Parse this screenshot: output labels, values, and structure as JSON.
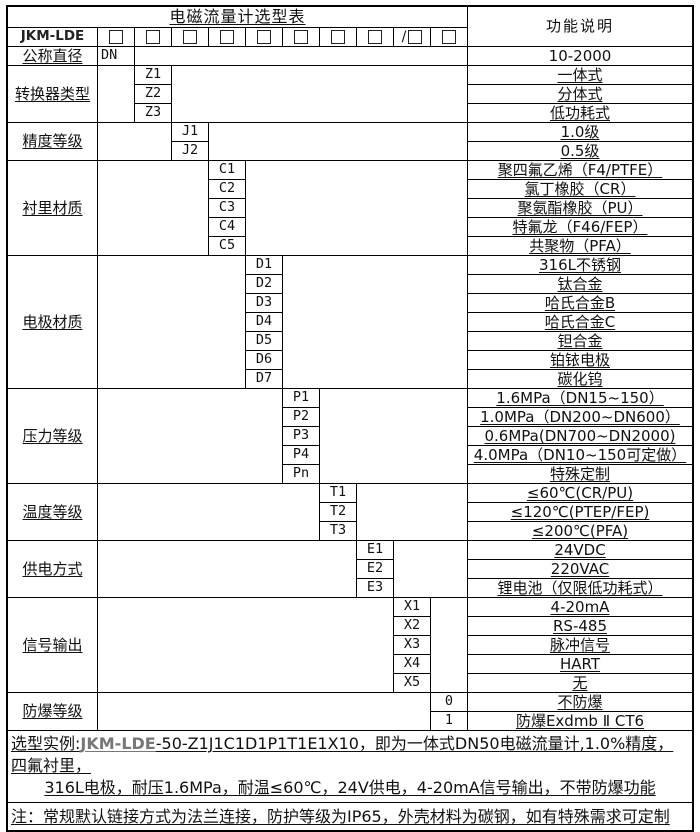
{
  "title": "电磁流量计选型表",
  "function_header": "功能说明",
  "model": {
    "prefix": "JKM-LDE",
    "slash": "/"
  },
  "dn_row": {
    "label": "公称直径",
    "code": "DN",
    "desc": "10-2000"
  },
  "categories": [
    {
      "label": "转换器类型",
      "codes": [
        "Z1",
        "Z2",
        "Z3"
      ],
      "descs": [
        "一体式",
        "分体式",
        "低功耗式"
      ]
    },
    {
      "label": "精度等级",
      "codes": [
        "J1",
        "J2"
      ],
      "descs": [
        "1.0级",
        "0.5级"
      ]
    },
    {
      "label": "衬里材质",
      "codes": [
        "C1",
        "C2",
        "C3",
        "C4",
        "C5"
      ],
      "descs": [
        "聚四氟乙烯（F4/PTFE）",
        "氯丁橡胶（CR）",
        "聚氨酯橡胶（PU）",
        "特氟龙（F46/FEP）",
        "共聚物（PFA）"
      ]
    },
    {
      "label": "电极材质",
      "codes": [
        "D1",
        "D2",
        "D3",
        "D4",
        "D5",
        "D6",
        "D7"
      ],
      "descs": [
        "316L不锈钢",
        "钛合金",
        "哈氏合金B",
        "哈氏合金C",
        "钽合金",
        "铂铱电极",
        "碳化钨"
      ]
    },
    {
      "label": "压力等级",
      "codes": [
        "P1",
        "P2",
        "P3",
        "P4",
        "Pn"
      ],
      "descs": [
        "1.6MPa（DN15~150）",
        "1.0MPa（DN200~DN600）",
        "0.6MPa(DN700~DN2000)",
        "4.0MPa（DN10~150可定做）",
        "特殊定制"
      ]
    },
    {
      "label": "温度等级",
      "codes": [
        "T1",
        "T2",
        "T3"
      ],
      "descs": [
        "≤60℃(CR/PU)",
        "≤120℃(PTEP/FEP)",
        "≤200℃(PFA)"
      ]
    },
    {
      "label": "供电方式",
      "codes": [
        "E1",
        "E2",
        "E3"
      ],
      "descs": [
        "24VDC",
        "220VAC",
        "锂电池（仅限低功耗式）"
      ]
    },
    {
      "label": "信号输出",
      "codes": [
        "X1",
        "X2",
        "X3",
        "X4",
        "X5"
      ],
      "descs": [
        "4-20mA",
        "RS-485",
        "脉冲信号",
        "HART",
        "无"
      ]
    },
    {
      "label": "防爆等级",
      "codes": [
        "0",
        "1"
      ],
      "descs": [
        "不防爆",
        "防爆Exdmb Ⅱ CT6"
      ]
    }
  ],
  "notes": {
    "example_prefix": "选型实例:",
    "example_model": "JKM-LDE",
    "example_rest": "-50-Z1J1C1D1P1T1E1X10，即为一体式DN50电磁流量计,1.0%精度，四氟衬里，",
    "example_line2": "316L电极，耐压1.6MPa，耐温≤60℃，24V供电，4-20mA信号输出，不带防爆功能",
    "note_line": "注：常规默认链接方式为法兰连接，防护等级为IP65，外壳材料为碳钢，如有特殊需求可定制"
  }
}
